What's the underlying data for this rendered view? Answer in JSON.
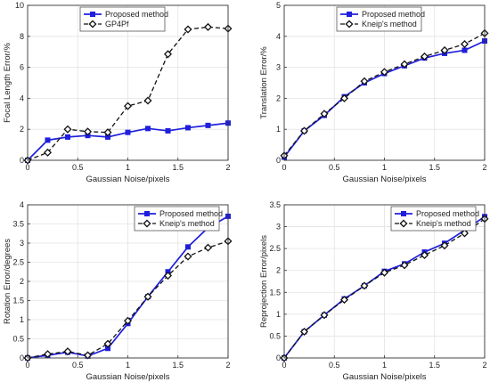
{
  "chart_data": [
    {
      "type": "line",
      "xlabel": "Gaussian Noise/pixels",
      "ylabel": "Focal Length Error/%",
      "xlim": [
        0,
        2
      ],
      "ylim": [
        0,
        10
      ],
      "xticks": [
        0,
        0.5,
        1,
        1.5,
        2
      ],
      "xtick_labels": [
        "0",
        "0.5",
        "1",
        "1.5",
        "2"
      ],
      "yticks": [
        0,
        2,
        4,
        6,
        8,
        10
      ],
      "ytick_labels": [
        "0",
        "2",
        "4",
        "6",
        "8",
        "10"
      ],
      "grid": true,
      "legend_position": "top-left",
      "x": [
        0,
        0.2,
        0.4,
        0.6,
        0.8,
        1.0,
        1.2,
        1.4,
        1.6,
        1.8,
        2.0
      ],
      "series": [
        {
          "name": "Proposed method",
          "color": "#1f1fdd",
          "line": "solid",
          "marker": "square",
          "values": [
            0,
            1.3,
            1.5,
            1.6,
            1.5,
            1.8,
            2.05,
            1.9,
            2.1,
            2.25,
            2.4
          ]
        },
        {
          "name": "GP4Pf",
          "color": "#111111",
          "line": "dashed",
          "marker": "diamond",
          "values": [
            0,
            0.5,
            2.0,
            1.85,
            1.8,
            3.5,
            3.85,
            6.85,
            8.45,
            8.6,
            8.5
          ]
        }
      ]
    },
    {
      "type": "line",
      "xlabel": "Gaussian Noise/pixels",
      "ylabel": "Translation Error/%",
      "xlim": [
        0,
        2
      ],
      "ylim": [
        0,
        5
      ],
      "xticks": [
        0,
        0.5,
        1,
        1.5,
        2
      ],
      "xtick_labels": [
        "0",
        "0.5",
        "1",
        "1.5",
        "2"
      ],
      "yticks": [
        0,
        1,
        2,
        3,
        4,
        5
      ],
      "ytick_labels": [
        "0",
        "1",
        "2",
        "3",
        "4",
        "5"
      ],
      "grid": true,
      "legend_position": "top-left",
      "x": [
        0,
        0.2,
        0.4,
        0.6,
        0.8,
        1.0,
        1.2,
        1.4,
        1.6,
        1.8,
        2.0
      ],
      "series": [
        {
          "name": "Proposed method",
          "color": "#1f1fdd",
          "line": "solid",
          "marker": "square",
          "values": [
            0.1,
            0.95,
            1.45,
            2.05,
            2.5,
            2.8,
            3.05,
            3.3,
            3.45,
            3.55,
            3.85
          ]
        },
        {
          "name": "Kneip's method",
          "color": "#111111",
          "line": "dashed",
          "marker": "diamond",
          "values": [
            0.15,
            0.95,
            1.5,
            2.0,
            2.55,
            2.85,
            3.1,
            3.35,
            3.55,
            3.75,
            4.1
          ]
        }
      ]
    },
    {
      "type": "line",
      "xlabel": "Gaussian Noise/pixels",
      "ylabel": "Rotation Error/degrees",
      "xlim": [
        0,
        2
      ],
      "ylim": [
        0,
        4
      ],
      "xticks": [
        0,
        0.5,
        1,
        1.5,
        2
      ],
      "xtick_labels": [
        "0",
        "0.5",
        "1",
        "1.5",
        "2"
      ],
      "yticks": [
        0,
        0.5,
        1,
        1.5,
        2,
        2.5,
        3,
        3.5,
        4
      ],
      "ytick_labels": [
        "0",
        "0.5",
        "1",
        "1.5",
        "2",
        "2.5",
        "3",
        "3.5",
        "4"
      ],
      "grid": true,
      "legend_position": "top-right",
      "x": [
        0,
        0.2,
        0.4,
        0.6,
        0.8,
        1.0,
        1.2,
        1.4,
        1.6,
        1.8,
        2.0
      ],
      "series": [
        {
          "name": "Proposed method",
          "color": "#1f1fdd",
          "line": "solid",
          "marker": "square",
          "values": [
            0,
            0.07,
            0.15,
            0.05,
            0.25,
            0.9,
            1.6,
            2.25,
            2.9,
            3.4,
            3.7
          ]
        },
        {
          "name": "Kneip's method",
          "color": "#111111",
          "line": "dashed",
          "marker": "diamond",
          "values": [
            0,
            0.1,
            0.17,
            0.07,
            0.37,
            0.97,
            1.6,
            2.15,
            2.65,
            2.88,
            3.05
          ]
        }
      ]
    },
    {
      "type": "line",
      "xlabel": "Gaussian Noise/pixels",
      "ylabel": "Reprojection Error/pixels",
      "xlim": [
        0,
        2
      ],
      "ylim": [
        0,
        3.5
      ],
      "xticks": [
        0,
        0.5,
        1,
        1.5,
        2
      ],
      "xtick_labels": [
        "0",
        "0.5",
        "1",
        "1.5",
        "2"
      ],
      "yticks": [
        0,
        0.5,
        1,
        1.5,
        2,
        2.5,
        3,
        3.5
      ],
      "ytick_labels": [
        "0",
        "0.5",
        "1",
        "1.5",
        "2",
        "2.5",
        "3",
        "3.5"
      ],
      "grid": true,
      "legend_position": "top-right",
      "x": [
        0,
        0.2,
        0.4,
        0.6,
        0.8,
        1.0,
        1.2,
        1.4,
        1.6,
        1.8,
        2.0
      ],
      "series": [
        {
          "name": "Proposed method",
          "color": "#1f1fdd",
          "line": "solid",
          "marker": "square",
          "values": [
            0,
            0.6,
            0.98,
            1.35,
            1.65,
            1.98,
            2.15,
            2.42,
            2.62,
            2.92,
            3.23
          ]
        },
        {
          "name": "Kneip's method",
          "color": "#111111",
          "line": "dashed",
          "marker": "diamond",
          "values": [
            0,
            0.6,
            0.98,
            1.33,
            1.65,
            1.95,
            2.12,
            2.35,
            2.57,
            2.85,
            3.18
          ]
        }
      ]
    }
  ]
}
